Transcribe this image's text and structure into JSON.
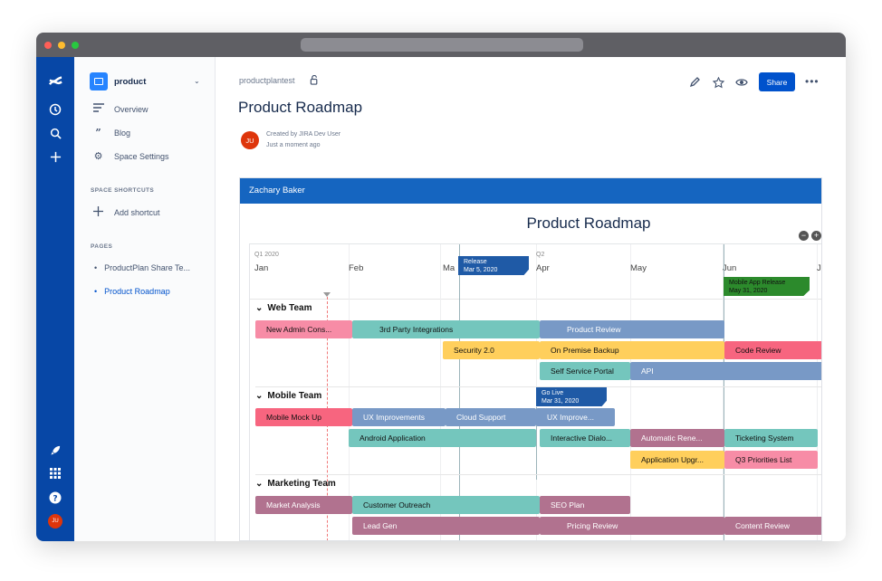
{
  "browser": {
    "colors": {
      "close": "#ff5f57",
      "minimize": "#febc2e",
      "zoom": "#28c840"
    }
  },
  "rail": {
    "icons": [
      "confluence-logo-icon",
      "recent-icon",
      "search-icon",
      "create-icon",
      "rocket-icon",
      "apps-icon",
      "help-icon"
    ],
    "avatar": "JU"
  },
  "sidebar": {
    "space_name": "product",
    "items": [
      {
        "label": "Overview",
        "icon": "overview-icon"
      },
      {
        "label": "Blog",
        "icon": "blog-icon"
      },
      {
        "label": "Space Settings",
        "icon": "gear-icon"
      }
    ],
    "shortcuts_heading": "SPACE SHORTCUTS",
    "add_shortcut": "Add shortcut",
    "pages_heading": "PAGES",
    "pages": [
      "ProductPlan Share Te...",
      "Product Roadmap"
    ]
  },
  "header": {
    "breadcrumb": "productplantest",
    "title": "Product Roadmap",
    "author_initials": "JU",
    "created_by": "Created by JIRA Dev User",
    "modified": "Just a moment ago",
    "share_label": "Share",
    "more": "•••"
  },
  "embed": {
    "owner": "Zachary Baker",
    "title": "Product Roadmap",
    "quarters": {
      "q1": "Q1 2020",
      "q2": "Q2"
    },
    "months": [
      "Jan",
      "Feb",
      "Ma",
      "Apr",
      "May",
      "Jun",
      "J"
    ],
    "milestones": {
      "release": {
        "name": "Release",
        "date": "Mar 5, 2020"
      },
      "go_live": {
        "name": "Go Live",
        "date": "Mar 31, 2020"
      },
      "mobile_release": {
        "name": "Mobile App Release",
        "date": "May 31, 2020"
      }
    },
    "lanes": [
      "Web Team",
      "Mobile Team",
      "Marketing Team"
    ],
    "bars": {
      "new_admin": "New Admin Cons...",
      "third_party": "3rd Party Integrations",
      "product_review": "Product Review",
      "security": "Security 2.0",
      "on_premise": "On Premise Backup",
      "code_review": "Code Review",
      "self_service": "Self Service Portal",
      "api": "API",
      "mobile_mock": "Mobile Mock Up",
      "ux_improvements": "UX Improvements",
      "cloud_support": "Cloud Support",
      "ux_improve2": "UX Improve...",
      "android": "Android Application",
      "interactive": "Interactive Dialo...",
      "automatic": "Automatic Rene...",
      "ticketing": "Ticketing System",
      "app_upgrade": "Application Upgr...",
      "q3_priorities": "Q3 Priorities List",
      "market_analysis": "Market Analysis",
      "customer_outreach": "Customer Outreach",
      "seo_plan": "SEO Plan",
      "lead_gen": "Lead Gen",
      "pricing_review": "Pricing Review",
      "content_review": "Content Review"
    }
  }
}
